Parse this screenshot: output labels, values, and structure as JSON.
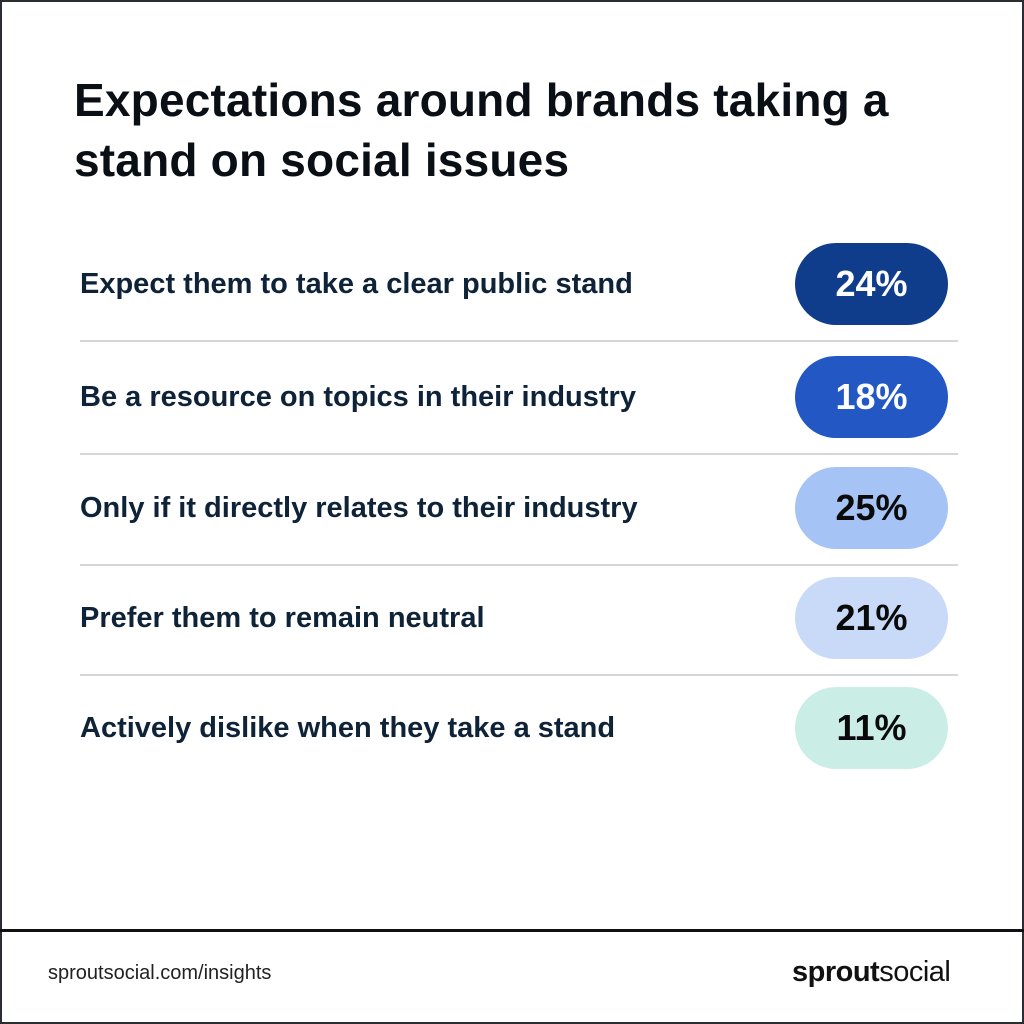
{
  "chart_data": {
    "type": "table",
    "title": "Expectations around brands taking a stand on social issues",
    "categories": [
      "Expect them to take a clear public stand",
      "Be a resource on topics in their industry",
      "Only if it directly relates to their industry",
      "Prefer them to remain neutral",
      "Actively dislike when they take a stand"
    ],
    "values": [
      24,
      18,
      25,
      21,
      11
    ],
    "value_labels": [
      "24%",
      "18%",
      "25%",
      "21%",
      "11%"
    ],
    "pill_colors": [
      "#0f3d8c",
      "#2257c4",
      "#a6c3f5",
      "#c8daf7",
      "#caeee6"
    ],
    "text_colors": [
      "#ffffff",
      "#ffffff",
      "#0a0a0a",
      "#0a0a0a",
      "#0a0a0a"
    ]
  },
  "footer": {
    "url": "sproutsocial.com/insights",
    "logo_bold": "sprout",
    "logo_light": "social"
  }
}
